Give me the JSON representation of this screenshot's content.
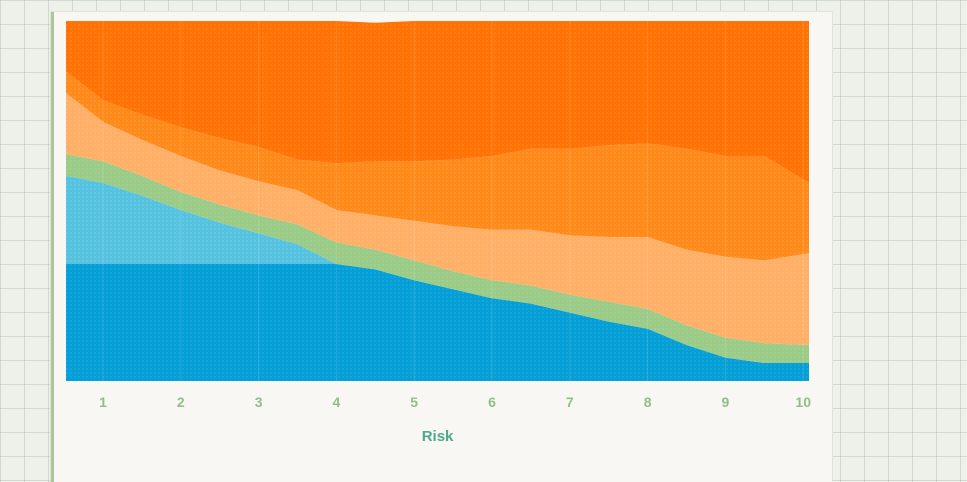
{
  "chart_data": {
    "type": "area",
    "stacked": true,
    "xlabel": "Risk",
    "x_ticks": [
      1,
      2,
      3,
      4,
      5,
      6,
      7,
      8,
      9,
      10
    ],
    "x": [
      0.55,
      1.0,
      1.5,
      2.0,
      2.5,
      3.0,
      3.5,
      4.0,
      4.5,
      5.0,
      5.5,
      6.0,
      6.5,
      7.0,
      7.5,
      8.0,
      8.5,
      9.0,
      9.5,
      10.05
    ],
    "ylim": [
      0,
      100
    ],
    "grid": false,
    "series": [
      {
        "color": "#039fd6",
        "values": [
          32.5,
          32.5,
          32.5,
          32.5,
          32.5,
          32.5,
          32.5,
          32.5,
          31,
          28,
          25.5,
          23,
          21.5,
          19,
          16.5,
          14.5,
          10,
          6.5,
          5,
          5
        ]
      },
      {
        "color": "#55c3e0",
        "values": [
          24.5,
          22.5,
          19,
          15,
          11.5,
          8.5,
          5.5,
          0,
          0,
          0,
          0,
          0,
          0,
          0,
          0,
          0,
          0,
          0,
          0,
          0
        ]
      },
      {
        "color": "#9acb87",
        "values": [
          6,
          6,
          5.5,
          5,
          5,
          5,
          5.5,
          6,
          5.5,
          5.5,
          5,
          5,
          5,
          5,
          5.5,
          5.5,
          5.5,
          5.5,
          5.5,
          5
        ]
      },
      {
        "color": "#ffb066",
        "values": [
          17,
          11,
          10,
          10,
          9.5,
          9.5,
          9.5,
          9,
          9.5,
          11,
          12.5,
          14,
          15.5,
          16.5,
          18,
          20,
          21,
          22.5,
          23,
          25.5
        ]
      },
      {
        "color": "#ff8a1a",
        "values": [
          6,
          6,
          7,
          8,
          9,
          9.5,
          8.5,
          13,
          15,
          16.5,
          18.5,
          20.5,
          22.5,
          24,
          25.5,
          26,
          28,
          28,
          29,
          19.5
        ]
      },
      {
        "color": "#ff7203",
        "values": [
          14,
          22,
          26,
          29.5,
          32.5,
          35,
          38.5,
          39.5,
          38.5,
          39,
          38.5,
          37.5,
          35.5,
          35.5,
          34.5,
          34,
          35.5,
          37.5,
          37.5,
          45
        ]
      }
    ]
  }
}
